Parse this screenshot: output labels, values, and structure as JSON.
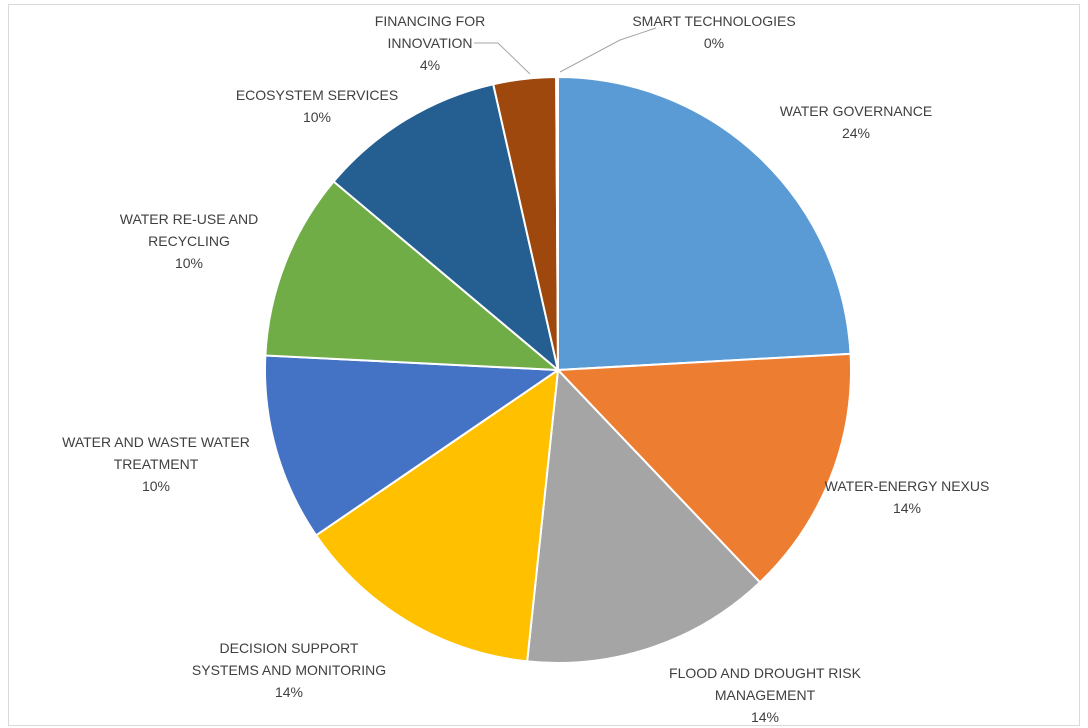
{
  "chart_data": {
    "type": "pie",
    "title": "",
    "slices": [
      {
        "name": "WATER GOVERNANCE",
        "lines": [
          "WATER GOVERNANCE"
        ],
        "pct_label": "24%",
        "value": 24.14,
        "color": "#5b9bd5"
      },
      {
        "name": "WATER-ENERGY NEXUS",
        "lines": [
          "WATER-ENERGY NEXUS"
        ],
        "pct_label": "14%",
        "value": 13.79,
        "color": "#ed7d31"
      },
      {
        "name": "FLOOD AND DROUGHT RISK MANAGEMENT",
        "lines": [
          "FLOOD AND DROUGHT RISK",
          "MANAGEMENT"
        ],
        "pct_label": "14%",
        "value": 13.79,
        "color": "#a5a5a5"
      },
      {
        "name": "DECISION SUPPORT SYSTEMS AND MONITORING",
        "lines": [
          "DECISION SUPPORT",
          "SYSTEMS AND MONITORING"
        ],
        "pct_label": "14%",
        "value": 13.79,
        "color": "#ffc000"
      },
      {
        "name": "WATER AND WASTE WATER TREATMENT",
        "lines": [
          "WATER AND WASTE WATER",
          "TREATMENT"
        ],
        "pct_label": "10%",
        "value": 10.34,
        "color": "#4472c4"
      },
      {
        "name": "WATER RE-USE AND RECYCLING",
        "lines": [
          "WATER RE-USE AND",
          "RECYCLING"
        ],
        "pct_label": "10%",
        "value": 10.34,
        "color": "#70ad47"
      },
      {
        "name": "ECOSYSTEM SERVICES",
        "lines": [
          "ECOSYSTEM SERVICES"
        ],
        "pct_label": "10%",
        "value": 10.34,
        "color": "#255e91"
      },
      {
        "name": "FINANCING FOR INNOVATION",
        "lines": [
          "FINANCING FOR",
          "INNOVATION"
        ],
        "pct_label": "4%",
        "value": 3.45,
        "color": "#9e480e"
      },
      {
        "name": "SMART TECHNOLOGIES",
        "lines": [
          "SMART TECHNOLOGIES"
        ],
        "pct_label": "0%",
        "value": 0.1,
        "color": "#636363"
      }
    ],
    "legend": "none",
    "data_labels": "outside, category name and percentage"
  }
}
